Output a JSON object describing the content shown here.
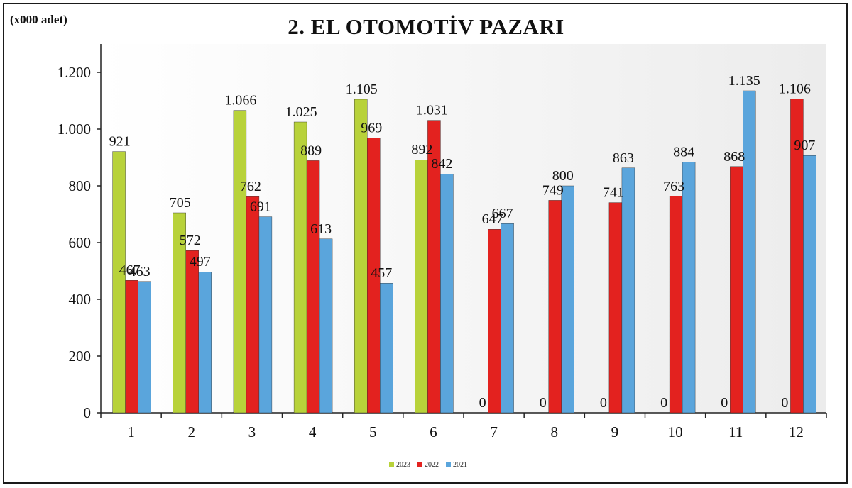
{
  "unit_label": "(x000 adet)",
  "chart_data": {
    "type": "bar",
    "title": "2. EL OTOMOTİV  PAZARI",
    "categories": [
      "1",
      "2",
      "3",
      "4",
      "5",
      "6",
      "7",
      "8",
      "9",
      "10",
      "11",
      "12"
    ],
    "series": [
      {
        "name": "2023",
        "color": "#b8d23a",
        "values": [
          921,
          705,
          1066,
          1025,
          1105,
          892,
          0,
          0,
          0,
          0,
          0,
          0
        ],
        "labels": [
          "921",
          "705",
          "1.066",
          "1.025",
          "1.105",
          "892",
          "0",
          "0",
          "0",
          "0",
          "0",
          "0"
        ]
      },
      {
        "name": "2022",
        "color": "#e3221f",
        "values": [
          467,
          572,
          762,
          889,
          969,
          1031,
          647,
          749,
          741,
          763,
          868,
          1106
        ],
        "labels": [
          "467",
          "572",
          "762",
          "889",
          "969",
          "1.031",
          "647",
          "749",
          "741",
          "763",
          "868",
          "1.106"
        ]
      },
      {
        "name": "2021",
        "color": "#5aa5dc",
        "values": [
          463,
          497,
          691,
          613,
          457,
          842,
          667,
          800,
          863,
          884,
          1135,
          907
        ],
        "labels": [
          "463",
          "497",
          "691",
          "613",
          "457",
          "842",
          "667",
          "800",
          "863",
          "884",
          "1.135",
          "907"
        ]
      }
    ],
    "ylim": [
      0,
      1300
    ],
    "yticks": [
      0,
      200,
      400,
      600,
      800,
      1000,
      1200
    ],
    "ytick_labels": [
      "0",
      "200",
      "400",
      "600",
      "800",
      "1.000",
      "1.200"
    ],
    "grid": false,
    "legend": "bottom-center"
  }
}
